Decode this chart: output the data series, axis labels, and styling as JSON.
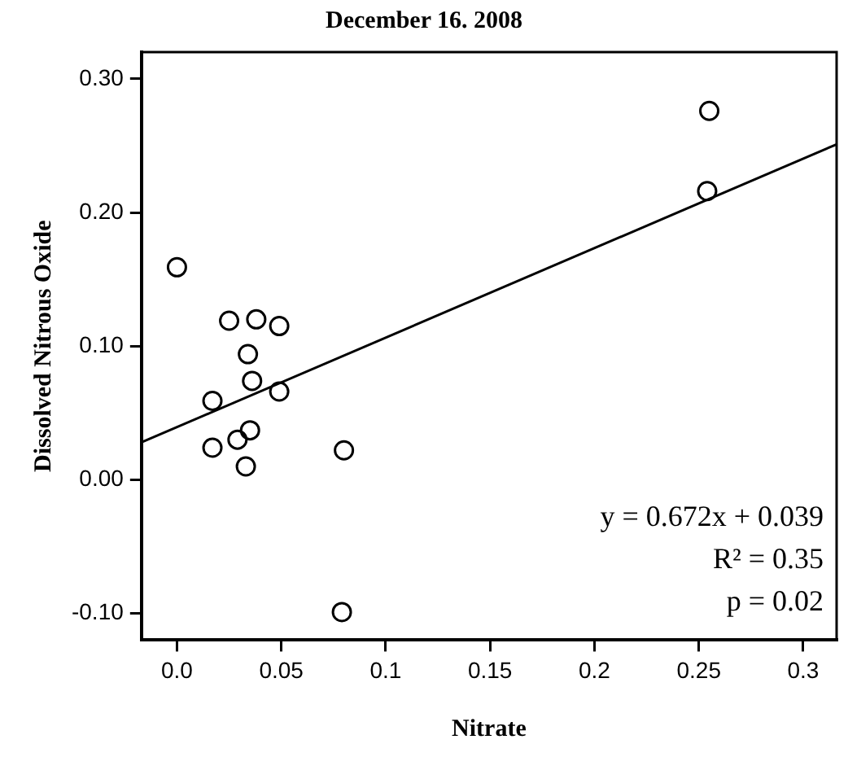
{
  "chart_data": {
    "type": "scatter",
    "title": "December 16. 2008",
    "xlabel": "Nitrate",
    "ylabel": "Dissolved Nitrous Oxide",
    "xlim": [
      -0.017,
      0.316
    ],
    "xticks": [
      {
        "value": 0,
        "label": "0.0"
      },
      0.05,
      0.1,
      0.15,
      0.2,
      0.25,
      0.3
    ],
    "ylim": [
      -0.12,
      0.32
    ],
    "yticks": [
      {
        "value": -0.1,
        "label": "-0.10"
      },
      {
        "value": 0,
        "label": "0.00"
      },
      {
        "value": 0.1,
        "label": "0.10"
      },
      {
        "value": 0.2,
        "label": "0.20"
      },
      {
        "value": 0.3,
        "label": "0.30"
      }
    ],
    "grid": false,
    "legend": false,
    "marker": "circle",
    "annotations": [
      "y = 0.672x + 0.039",
      "R² = 0.35",
      "p = 0.02"
    ],
    "series": [
      {
        "color": "#000000",
        "x": [
          0.0,
          0.025,
          0.038,
          0.049,
          0.034,
          0.036,
          0.049,
          0.017,
          0.017,
          0.029,
          0.035,
          0.033,
          0.08,
          0.079,
          0.255,
          0.254
        ],
        "values": [
          0.159,
          0.119,
          0.12,
          0.115,
          0.094,
          0.074,
          0.066,
          0.059,
          0.024,
          0.03,
          0.037,
          0.01,
          0.022,
          -0.099,
          0.276,
          0.216
        ]
      },
      {
        "type": "line",
        "color": "#000000",
        "x": [
          -0.017,
          0.316
        ],
        "values": [
          0.028,
          0.251
        ],
        "marker": "none",
        "line_style": "solid"
      }
    ]
  }
}
